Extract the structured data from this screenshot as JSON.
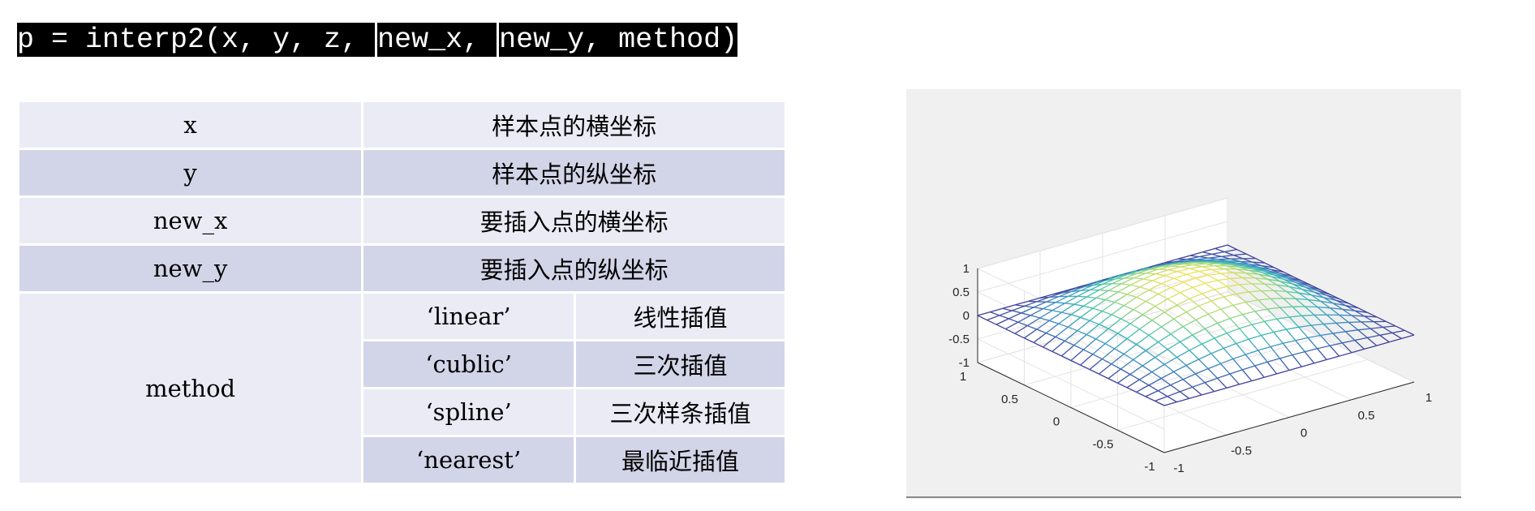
{
  "code": {
    "parts": [
      "p = interp2(x, y, z, ",
      "new_x",
      ", ",
      "new_y",
      ", method)"
    ]
  },
  "table": {
    "rows": [
      {
        "param": "x",
        "desc": "样本点的横坐标"
      },
      {
        "param": "y",
        "desc": "样本点的纵坐标"
      },
      {
        "param": "new_x",
        "desc": "要插入点的横坐标"
      },
      {
        "param": "new_y",
        "desc": "要插入点的纵坐标"
      }
    ],
    "method": {
      "param": "method",
      "options": [
        {
          "name": "‘linear’",
          "desc": "线性插值"
        },
        {
          "name": "‘cublic’",
          "desc": "三次插值"
        },
        {
          "name": "‘spline’",
          "desc": "三次样条插值"
        },
        {
          "name": "‘nearest’",
          "desc": "最临近插值"
        }
      ]
    }
  },
  "colors": {
    "row_light": "#ebebf6",
    "row_dark": "#d2d5e8",
    "plot_bg": "#f0f0f0"
  },
  "chart_data": {
    "type": "surface",
    "function": "cos(pi*x/2)*cos(pi*y/2)",
    "grid": 20,
    "xlim": [
      -1,
      1
    ],
    "ylim": [
      -1,
      1
    ],
    "zlim": [
      -1,
      1
    ],
    "z_ticks": [
      "-1",
      "-0.5",
      "0",
      "0.5",
      "1"
    ],
    "x_ticks": [
      "-1",
      "-0.5",
      "0",
      "0.5",
      "1"
    ],
    "y_ticks": [
      "-1",
      "-0.5",
      "0",
      "0.5",
      "1"
    ],
    "colormap": [
      "#3f3f9c",
      "#3b8fc4",
      "#3fc1b0",
      "#a6d97a",
      "#f4e35c"
    ],
    "grid_on": true
  }
}
